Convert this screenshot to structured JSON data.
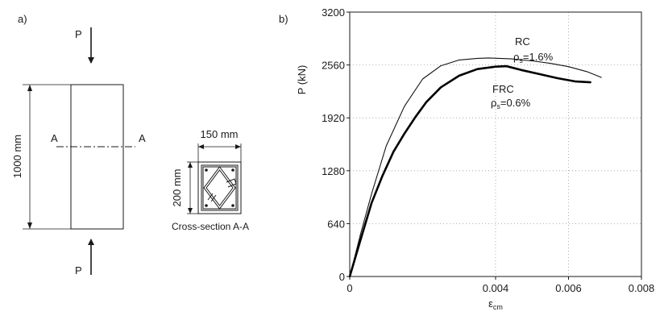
{
  "panel_a": {
    "label": "a)",
    "load_top": "P",
    "load_bottom": "P",
    "height_dim": "1000 mm",
    "section_left": "A",
    "section_right": "A",
    "width_dim": "150 mm",
    "depth_dim": "200 mm",
    "section_caption": "Cross-section A-A"
  },
  "panel_b": {
    "label": "b)",
    "ylabel": "P (kN)",
    "xlabel_main": "ε",
    "xlabel_sub": "cm"
  },
  "annotations": {
    "rc_name": "RC",
    "rc_rho_symbol": "ρ",
    "rc_rho_sub": "s",
    "rc_rho_value": "=1.6%",
    "frc_name": "FRC",
    "frc_rho_symbol": "ρ",
    "frc_rho_sub": "s",
    "frc_rho_value": "=0.6%"
  },
  "chart_data": {
    "type": "line",
    "title": "",
    "xlabel": "εcm",
    "ylabel": "P (kN)",
    "xlim": [
      0,
      0.008
    ],
    "ylim": [
      0,
      3200
    ],
    "xticks": [
      0,
      0.004,
      0.006,
      0.008
    ],
    "xtick_labels": [
      "0",
      "0.004",
      "0.006",
      "0.008"
    ],
    "yticks": [
      0,
      640,
      1280,
      1920,
      2560,
      3200
    ],
    "ytick_labels": [
      "0",
      "640",
      "1280",
      "1920",
      "2560",
      "3200"
    ],
    "grid": true,
    "legend": "none",
    "series": [
      {
        "name": "RC ρs=1.6%",
        "color": "#111111",
        "x": [
          0,
          0.0003,
          0.0006,
          0.001,
          0.0015,
          0.002,
          0.0025,
          0.003,
          0.0035,
          0.0038,
          0.0041,
          0.0044,
          0.005,
          0.0055,
          0.006,
          0.0065,
          0.0069
        ],
        "y": [
          0,
          520,
          1000,
          1580,
          2060,
          2390,
          2550,
          2620,
          2640,
          2645,
          2640,
          2635,
          2610,
          2580,
          2540,
          2480,
          2410
        ]
      },
      {
        "name": "FRC ρs=0.6%",
        "color": "#000000",
        "x": [
          0,
          0.0003,
          0.0006,
          0.0009,
          0.0012,
          0.0015,
          0.0018,
          0.0021,
          0.0025,
          0.003,
          0.0035,
          0.004,
          0.0043,
          0.0047,
          0.0052,
          0.0057,
          0.0062,
          0.0066
        ],
        "y": [
          0,
          450,
          890,
          1220,
          1510,
          1730,
          1930,
          2110,
          2290,
          2430,
          2510,
          2540,
          2545,
          2500,
          2450,
          2400,
          2360,
          2350
        ]
      }
    ]
  }
}
